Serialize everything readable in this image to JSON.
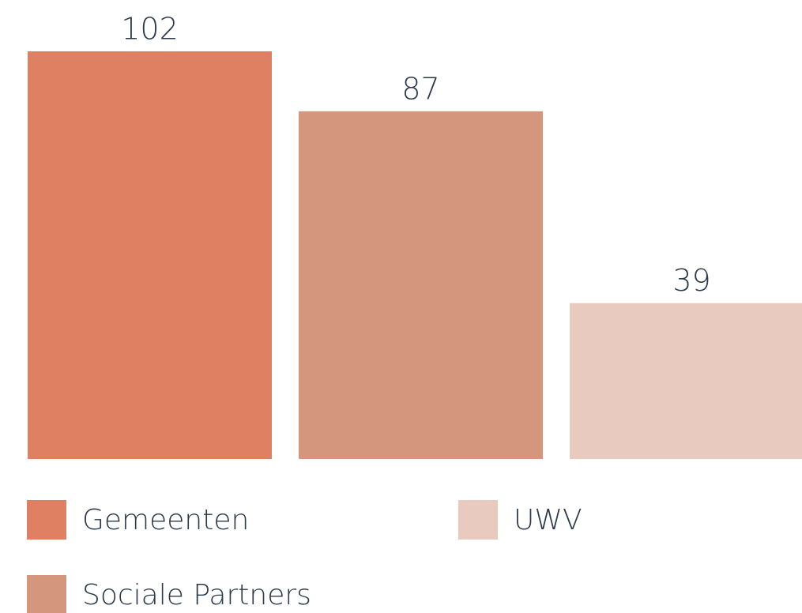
{
  "chart_data": {
    "type": "bar",
    "series": [
      {
        "name": "Gemeenten",
        "color": "#e08063",
        "values": [
          102
        ]
      },
      {
        "name": "Sociale Partners",
        "color": "#d4977d",
        "values": [
          87
        ]
      },
      {
        "name": "UWV",
        "color": "#e9cabf",
        "values": [
          39
        ]
      }
    ]
  }
}
